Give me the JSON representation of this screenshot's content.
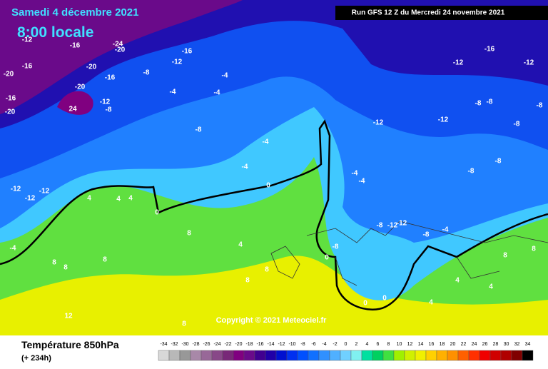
{
  "header": {
    "date": "Samedi 4 décembre 2021",
    "time": "8:00 locale",
    "run": "Run GFS 12 Z du Mercredi 24 novembre 2021"
  },
  "map": {
    "labels": [
      "-16",
      "-12",
      "-20",
      "-16",
      "-20",
      "-12",
      "-12",
      "-12",
      "-4",
      "-16",
      "-20",
      "-24",
      "-20",
      "-16",
      "-12",
      "-8",
      "-16",
      "-12",
      "-8",
      "24",
      "-20",
      "-4",
      "-4",
      "-4",
      "-8",
      "-4",
      "-4",
      "0",
      "0",
      "4",
      "4",
      "4",
      "8",
      "4",
      "8",
      "8",
      "8",
      "8",
      "8",
      "8",
      "12",
      "-4",
      "-4",
      "-8",
      "-12",
      "-12",
      "-8",
      "-4",
      "-8",
      "0",
      "0",
      "0",
      "4",
      "4",
      "8",
      "8",
      "4",
      "-8",
      "-8",
      "-8",
      "-8",
      "-8",
      "-8",
      "-12",
      "-12",
      "-16",
      "-12",
      "-12"
    ],
    "copyright": "Copyright © 2021 Meteociel.fr"
  },
  "footer": {
    "title": "Température 850hPa",
    "lead": "(+ 234h)"
  },
  "legend": {
    "ticks": [
      -34,
      -32,
      -30,
      -28,
      -26,
      -24,
      -22,
      -20,
      -18,
      -16,
      -14,
      -12,
      -10,
      -8,
      -6,
      -4,
      -2,
      0,
      2,
      4,
      6,
      8,
      10,
      12,
      14,
      16,
      18,
      20,
      22,
      24,
      26,
      28,
      30,
      32,
      34
    ],
    "colors": [
      "#d8d8d8",
      "#b8b8b8",
      "#989898",
      "#a888a8",
      "#986898",
      "#884888",
      "#782878",
      "#800080",
      "#6a0a8a",
      "#400090",
      "#2000a8",
      "#0010d0",
      "#0030f0",
      "#0050ff",
      "#1070ff",
      "#3090ff",
      "#50b0ff",
      "#70d0ff",
      "#80f0f0",
      "#00e0a0",
      "#00d060",
      "#40e040",
      "#a0f000",
      "#d0f000",
      "#f0f000",
      "#ffd000",
      "#ffb000",
      "#ff9000",
      "#ff6000",
      "#ff3000",
      "#f00000",
      "#d00000",
      "#b00000",
      "#800000",
      "#000000"
    ]
  }
}
